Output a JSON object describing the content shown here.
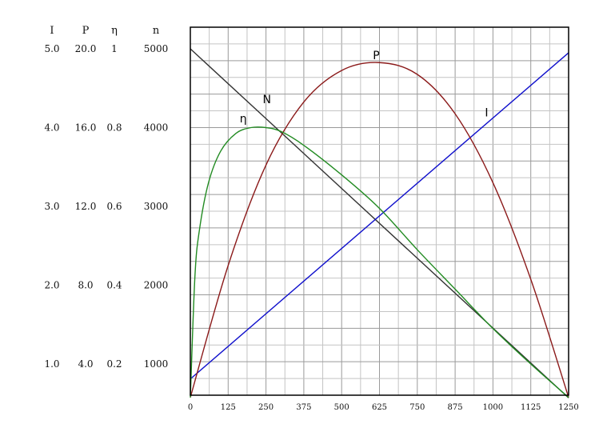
{
  "chart_data": {
    "type": "line",
    "title": "",
    "xlabel": "",
    "x_ticks": [
      "0",
      "125",
      "250",
      "375",
      "500",
      "625",
      "750",
      "875",
      "1000",
      "1125",
      "1250"
    ],
    "xlim": [
      0,
      1250
    ],
    "grid": true,
    "left_scales": [
      {
        "header": "I",
        "values": [
          "5.0",
          "4.0",
          "3.0",
          "2.0",
          "1.0"
        ],
        "max": 5
      },
      {
        "header": "P",
        "values": [
          "20.0",
          "16.0",
          "12.0",
          "8.0",
          "4.0"
        ],
        "max": 20
      },
      {
        "header": "η",
        "values": [
          "1",
          "0.8",
          "0.6",
          "0.4",
          "0.2"
        ],
        "max": 1
      },
      {
        "header": "n",
        "values": [
          "5000",
          "4000",
          "3000",
          "2000",
          "1000"
        ],
        "max": 5000
      }
    ],
    "series": [
      {
        "name": "N",
        "scale": "n",
        "color": "#333333",
        "x": [
          0,
          1250
        ],
        "values": [
          5000,
          570
        ]
      },
      {
        "name": "I",
        "scale": "I",
        "color": "#1010cc",
        "x": [
          0,
          1250
        ],
        "values": [
          0.81,
          4.95
        ]
      },
      {
        "name": "P",
        "scale": "P",
        "color": "#8b1a1a",
        "x": [
          0,
          125,
          250,
          375,
          500,
          625,
          750,
          875,
          1000,
          1125,
          1250
        ],
        "values": [
          2.3,
          9.0,
          14.1,
          17.3,
          18.9,
          19.3,
          18.7,
          16.7,
          13.2,
          8.3,
          2.3
        ]
      },
      {
        "name": "η",
        "scale": "η",
        "color": "#228b22",
        "x": [
          0,
          15,
          30,
          60,
          100,
          150,
          200,
          250,
          300,
          375,
          500,
          625,
          750,
          875,
          1000,
          1125,
          1250
        ],
        "values": [
          0.115,
          0.42,
          0.54,
          0.66,
          0.74,
          0.785,
          0.8,
          0.8,
          0.79,
          0.755,
          0.68,
          0.595,
          0.49,
          0.39,
          0.29,
          0.2,
          0.115
        ]
      }
    ]
  }
}
